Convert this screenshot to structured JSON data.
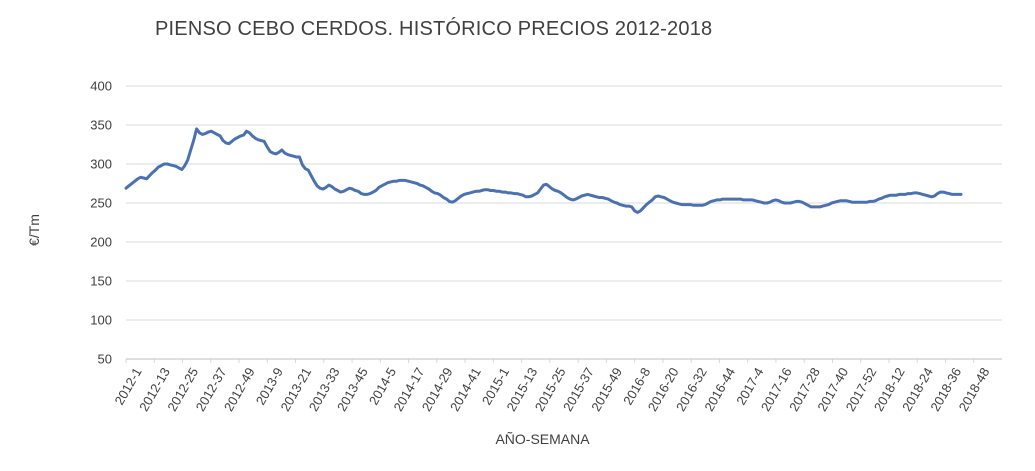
{
  "chart_data": {
    "type": "line",
    "title": "PIENSO CEBO CERDOS. HISTÓRICO PRECIOS 2012-2018",
    "xlabel": "AÑO-SEMANA",
    "ylabel": "€/Tm",
    "ylim": [
      50,
      400
    ],
    "yticks": [
      50,
      100,
      150,
      200,
      250,
      300,
      350,
      400
    ],
    "grid": true,
    "legend": "none",
    "line_color": "#4a72b0",
    "x_tick_labels": [
      "2012-1",
      "2012-13",
      "2012-25",
      "2012-37",
      "2012-49",
      "2013-9",
      "2013-21",
      "2013-33",
      "2013-45",
      "2014-5",
      "2014-17",
      "2014-29",
      "2014-41",
      "2015-1",
      "2015-13",
      "2015-25",
      "2015-37",
      "2015-49",
      "2016-8",
      "2016-20",
      "2016-32",
      "2016-44",
      "2017-4",
      "2017-16",
      "2017-28",
      "2017-40",
      "2017-52",
      "2018-12",
      "2018-24",
      "2018-36",
      "2018-48"
    ],
    "series": [
      {
        "values": [
          269,
          272,
          275,
          278,
          281,
          283,
          282,
          281,
          285,
          289,
          292,
          296,
          298,
          300,
          300,
          299,
          298,
          297,
          295,
          293,
          298,
          305,
          318,
          330,
          345,
          340,
          338,
          339,
          341,
          342,
          340,
          338,
          336,
          330,
          327,
          326,
          329,
          332,
          334,
          336,
          337,
          342,
          340,
          336,
          333,
          331,
          330,
          329,
          322,
          316,
          314,
          313,
          315,
          318,
          314,
          312,
          311,
          310,
          309,
          309,
          299,
          294,
          292,
          285,
          278,
          272,
          269,
          268,
          270,
          273,
          271,
          268,
          266,
          264,
          265,
          267,
          269,
          268,
          266,
          265,
          262,
          261,
          261,
          262,
          264,
          266,
          270,
          272,
          274,
          276,
          277,
          278,
          278,
          279,
          279,
          279,
          278,
          277,
          276,
          275,
          273,
          272,
          270,
          268,
          265,
          263,
          262,
          260,
          257,
          255,
          252,
          251,
          253,
          256,
          259,
          261,
          262,
          263,
          264,
          265,
          265,
          266,
          267,
          267,
          266,
          266,
          265,
          265,
          264,
          264,
          263,
          263,
          262,
          262,
          261,
          260,
          258,
          258,
          259,
          261,
          263,
          268,
          273,
          274,
          271,
          268,
          266,
          265,
          263,
          260,
          257,
          255,
          254,
          255,
          257,
          259,
          260,
          261,
          260,
          259,
          258,
          257,
          257,
          256,
          255,
          253,
          251,
          250,
          248,
          247,
          246,
          246,
          245,
          240,
          238,
          240,
          244,
          248,
          251,
          254,
          258,
          259,
          258,
          257,
          255,
          253,
          251,
          250,
          249,
          248,
          248,
          248,
          248,
          247,
          247,
          247,
          247,
          248,
          250,
          252,
          253,
          254,
          254,
          255,
          255,
          255,
          255,
          255,
          255,
          255,
          254,
          254,
          254,
          254,
          253,
          252,
          251,
          250,
          250,
          251,
          253,
          254,
          253,
          251,
          250,
          250,
          250,
          251,
          252,
          252,
          251,
          249,
          247,
          245,
          245,
          245,
          245,
          246,
          247,
          248,
          250,
          251,
          252,
          253,
          253,
          253,
          252,
          251,
          251,
          251,
          251,
          251,
          251,
          252,
          252,
          253,
          255,
          256,
          258,
          259,
          260,
          260,
          260,
          261,
          261,
          261,
          262,
          262,
          263,
          263,
          262,
          261,
          260,
          259,
          258,
          259,
          262,
          264,
          264,
          263,
          262,
          261,
          261,
          261,
          261
        ]
      }
    ]
  }
}
